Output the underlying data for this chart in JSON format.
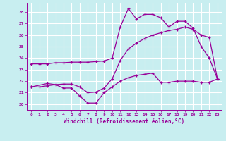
{
  "xlabel": "Windchill (Refroidissement éolien,°C)",
  "bg_color": "#c8eef0",
  "line_color": "#990099",
  "grid_color": "#ffffff",
  "x_ticks": [
    0,
    1,
    2,
    3,
    4,
    5,
    6,
    7,
    8,
    9,
    10,
    11,
    12,
    13,
    14,
    15,
    16,
    17,
    18,
    19,
    20,
    21,
    22,
    23
  ],
  "y_ticks": [
    20,
    21,
    22,
    23,
    24,
    25,
    26,
    27,
    28
  ],
  "xlim": [
    -0.5,
    23.5
  ],
  "ylim": [
    19.5,
    28.8
  ],
  "line1_x": [
    0,
    1,
    2,
    3,
    4,
    5,
    6,
    7,
    8,
    9,
    10,
    11,
    12,
    13,
    14,
    15,
    16,
    17,
    18,
    19,
    20,
    21,
    22,
    23
  ],
  "line1_y": [
    23.5,
    23.5,
    23.5,
    23.6,
    23.6,
    23.65,
    23.65,
    23.65,
    23.7,
    23.75,
    24.0,
    26.7,
    28.3,
    27.4,
    27.8,
    27.8,
    27.5,
    26.7,
    27.2,
    27.2,
    26.6,
    25.0,
    24.0,
    22.2
  ],
  "line2_x": [
    0,
    1,
    2,
    3,
    4,
    5,
    6,
    7,
    8,
    9,
    10,
    11,
    12,
    13,
    14,
    15,
    16,
    17,
    18,
    19,
    20,
    21,
    22,
    23
  ],
  "line2_y": [
    21.5,
    21.5,
    21.6,
    21.7,
    21.75,
    21.75,
    21.5,
    21.0,
    21.05,
    21.4,
    22.2,
    23.8,
    24.8,
    25.3,
    25.7,
    26.0,
    26.2,
    26.4,
    26.5,
    26.7,
    26.5,
    26.0,
    25.8,
    22.2
  ],
  "line3_x": [
    0,
    2,
    3,
    4,
    5,
    6,
    7,
    8,
    9,
    10,
    11,
    12,
    13,
    14,
    15,
    16,
    17,
    18,
    19,
    20,
    21,
    22,
    23
  ],
  "line3_y": [
    21.5,
    21.8,
    21.7,
    21.4,
    21.4,
    20.7,
    20.1,
    20.1,
    21.0,
    21.5,
    22.0,
    22.3,
    22.5,
    22.6,
    22.7,
    21.9,
    21.9,
    22.0,
    22.0,
    22.0,
    21.9,
    21.9,
    22.2
  ]
}
